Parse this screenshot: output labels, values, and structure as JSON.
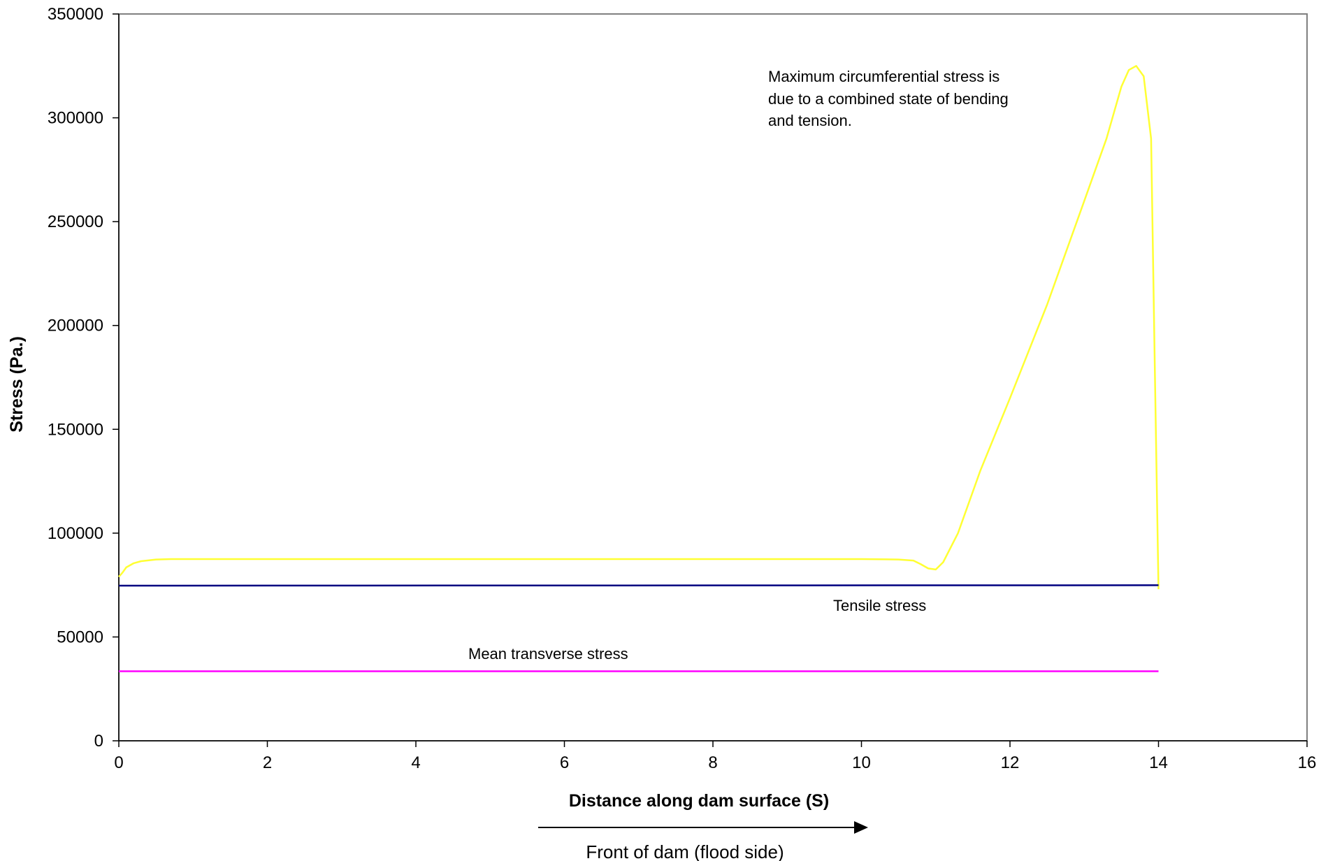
{
  "chart_data": {
    "type": "line",
    "xlabel": "Distance along dam surface (S)",
    "ylabel": "Stress (Pa.)",
    "xlim": [
      0,
      16
    ],
    "ylim": [
      0,
      350000
    ],
    "x_ticks": [
      "0",
      "2",
      "4",
      "6",
      "8",
      "10",
      "12",
      "14",
      "16"
    ],
    "y_ticks": [
      "0",
      "50000",
      "100000",
      "150000",
      "200000",
      "250000",
      "300000",
      "350000"
    ],
    "grid": false,
    "legend": "none",
    "series": [
      {
        "name": "Maximum circumferential stress",
        "color": "#ffff33",
        "x": [
          0,
          0.05,
          0.1,
          0.2,
          0.3,
          0.5,
          0.7,
          1,
          2,
          4,
          6,
          8,
          10,
          10.5,
          10.7,
          10.8,
          10.9,
          11.0,
          11.1,
          11.3,
          11.6,
          12.0,
          12.5,
          13.0,
          13.3,
          13.5,
          13.6,
          13.7,
          13.8,
          13.9,
          13.95,
          14.0
        ],
        "y": [
          79000,
          81000,
          83500,
          85500,
          86500,
          87300,
          87500,
          87500,
          87500,
          87500,
          87500,
          87500,
          87500,
          87300,
          86800,
          85000,
          83000,
          82500,
          86000,
          100000,
          130000,
          165000,
          210000,
          260000,
          290000,
          315000,
          323000,
          325000,
          320000,
          290000,
          180000,
          73000
        ]
      },
      {
        "name": "Tensile stress",
        "color": "#000080",
        "x": [
          0,
          14
        ],
        "y": [
          74700,
          74900
        ]
      },
      {
        "name": "Mean transverse stress",
        "color": "#ff00ff",
        "x": [
          0,
          14
        ],
        "y": [
          33500,
          33500
        ]
      }
    ],
    "annotations": {
      "max_line1": "Maximum circumferential stress is",
      "max_line2": "due to a combined state of bending",
      "max_line3": "and tension.",
      "tensile": "Tensile stress",
      "mean": "Mean transverse stress",
      "front": "Front of dam (flood side)"
    }
  }
}
